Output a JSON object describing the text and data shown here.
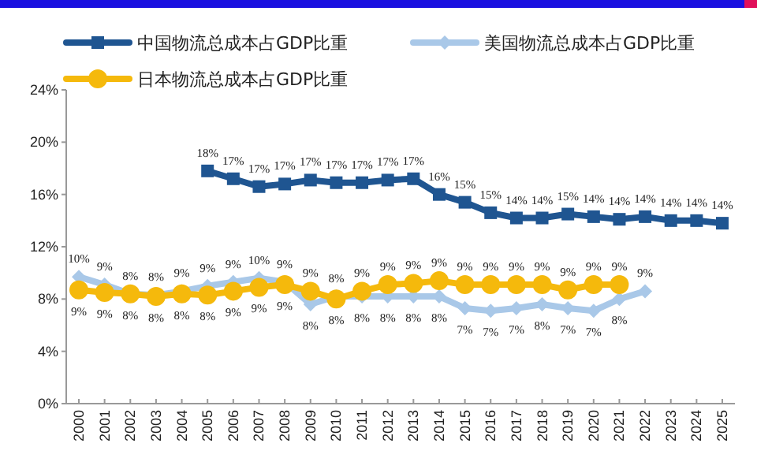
{
  "chart_data": {
    "type": "line",
    "categories": [
      "2000",
      "2001",
      "2002",
      "2003",
      "2004",
      "2005",
      "2006",
      "2007",
      "2008",
      "2009",
      "2010",
      "2011",
      "2012",
      "2013",
      "2014",
      "2015",
      "2016",
      "2017",
      "2018",
      "2019",
      "2020",
      "2021",
      "2022",
      "2023",
      "2024",
      "2025"
    ],
    "series": [
      {
        "name": "中国物流总成本占GDP比重",
        "color": "#1f5591",
        "marker": "square",
        "values": [
          null,
          null,
          null,
          null,
          null,
          17.8,
          17.2,
          16.6,
          16.8,
          17.1,
          16.9,
          16.9,
          17.1,
          17.2,
          16.0,
          15.4,
          14.6,
          14.2,
          14.2,
          14.5,
          14.3,
          14.1,
          14.3,
          14.0,
          14.0,
          13.8
        ],
        "value_labels": [
          null,
          null,
          null,
          null,
          null,
          "18%",
          "17%",
          "17%",
          "17%",
          "17%",
          "17%",
          "17%",
          "17%",
          "17%",
          "16%",
          "15%",
          "15%",
          "14%",
          "14%",
          "15%",
          "14%",
          "14%",
          "14%",
          "14%",
          "14%",
          "14%"
        ]
      },
      {
        "name": "美国物流总成本占GDP比重",
        "color": "#a9c8e8",
        "marker": "diamond",
        "values": [
          9.7,
          9.1,
          8.4,
          8.3,
          8.6,
          9.0,
          9.3,
          9.6,
          9.3,
          7.6,
          8.2,
          8.2,
          8.2,
          8.2,
          8.2,
          7.3,
          7.1,
          7.3,
          7.6,
          7.3,
          7.1,
          8.0,
          8.6,
          null,
          null,
          null
        ],
        "value_labels": [
          "10%",
          "9%",
          "8%",
          "8%",
          "9%",
          "9%",
          "9%",
          "10%",
          "9%",
          "8%",
          "8%",
          "8%",
          "8%",
          "8%",
          "8%",
          "7%",
          "7%",
          "7%",
          "8%",
          "7%",
          "7%",
          "8%",
          "9%",
          null,
          null,
          null
        ]
      },
      {
        "name": "日本物流总成本占GDP比重",
        "color": "#f5b90c",
        "marker": "circle",
        "values": [
          8.7,
          8.5,
          8.4,
          8.2,
          8.4,
          8.3,
          8.6,
          8.9,
          9.1,
          8.6,
          8.0,
          8.6,
          9.1,
          9.2,
          9.4,
          9.1,
          9.1,
          9.1,
          9.1,
          8.7,
          9.1,
          9.1,
          null,
          null,
          null,
          null
        ],
        "value_labels": [
          "9%",
          "9%",
          "8%",
          "8%",
          "8%",
          "8%",
          "9%",
          "9%",
          "9%",
          "9%",
          "8%",
          "9%",
          "9%",
          "9%",
          "9%",
          "9%",
          "9%",
          "9%",
          "9%",
          "9%",
          "9%",
          "9%",
          null,
          null,
          null,
          null
        ]
      }
    ],
    "ylim": [
      0,
      24
    ],
    "yticks": [
      {
        "value": 0,
        "label": "0%"
      },
      {
        "value": 4,
        "label": "4%"
      },
      {
        "value": 8,
        "label": "8%"
      },
      {
        "value": 12,
        "label": "12%"
      },
      {
        "value": 16,
        "label": "16%"
      },
      {
        "value": 20,
        "label": "20%"
      },
      {
        "value": 24,
        "label": "24%"
      }
    ],
    "grid": false,
    "legend": "top",
    "line_style": "solid"
  }
}
